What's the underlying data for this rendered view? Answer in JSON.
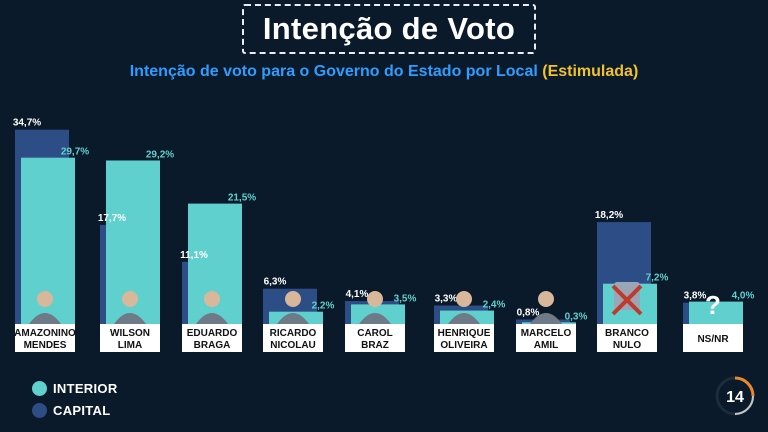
{
  "header": {
    "title": "Intenção de Voto",
    "subtitle_main": "Intenção de voto para o Governo do Estado por Local",
    "subtitle_highlight": "(Estimulada)"
  },
  "chart_data": {
    "type": "bar",
    "title": "Intenção de voto para o Governo do Estado por Local (Estimulada)",
    "categories": [
      [
        "AMAZONINO",
        "MENDES"
      ],
      [
        "WILSON",
        "LIMA"
      ],
      [
        "EDUARDO",
        "BRAGA"
      ],
      [
        "RICARDO",
        "NICOLAU"
      ],
      [
        "CAROL",
        "BRAZ"
      ],
      [
        "HENRIQUE",
        "OLIVEIRA"
      ],
      [
        "MARCELO",
        "AMIL"
      ],
      [
        "BRANCO",
        "NULO"
      ],
      [
        "NS/NR"
      ]
    ],
    "series": [
      {
        "name": "CAPITAL",
        "color": "#2d4d86",
        "values": [
          34.7,
          17.7,
          11.1,
          6.3,
          4.1,
          3.3,
          0.8,
          18.2,
          3.8
        ],
        "labels": [
          "34,7%",
          "17,7%",
          "11,1%",
          "6,3%",
          "4,1%",
          "3,3%",
          "0,8%",
          "18,2%",
          "3,8%"
        ]
      },
      {
        "name": "INTERIOR",
        "color": "#5fd0cd",
        "values": [
          29.7,
          29.2,
          21.5,
          2.2,
          3.5,
          2.4,
          0.3,
          7.2,
          4.0
        ],
        "labels": [
          "29,7%",
          "29,2%",
          "21,5%",
          "2,2%",
          "3,5%",
          "2,4%",
          "0,3%",
          "7,2%",
          "4,0%"
        ]
      }
    ],
    "legend_position": "bottom-left",
    "grid": false
  },
  "legend": [
    {
      "label": "INTERIOR",
      "color": "#5fd0cd"
    },
    {
      "label": "CAPITAL",
      "color": "#2d4d86"
    }
  ],
  "brand": {
    "logo_text": "14"
  }
}
